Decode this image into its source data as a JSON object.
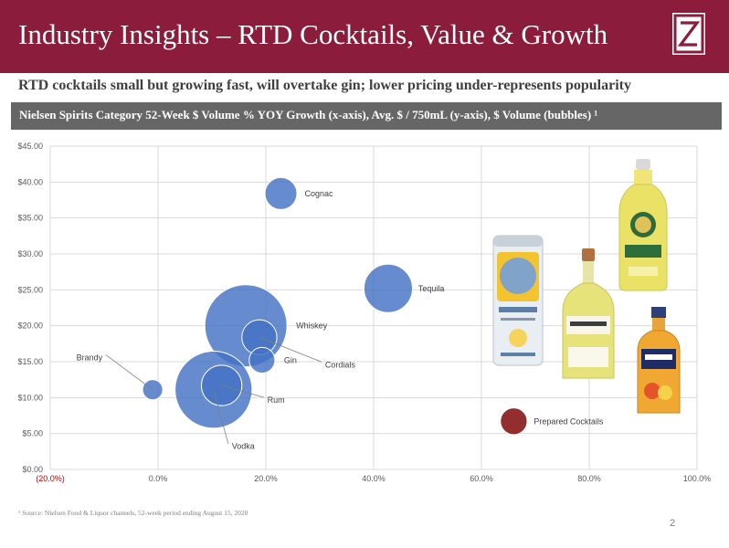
{
  "header": {
    "title": "Industry Insights – RTD Cocktails, Value & Growth",
    "accent_color": "#8c1c3b"
  },
  "subtitle": "RTD cocktails small but growing fast, will overtake gin; lower pricing under-represents popularity",
  "banner": "Nielsen Spirits Category 52-Week $ Volume % YOY Growth (x-axis), Avg. $ / 750mL (y-axis), $ Volume (bubbles) ¹",
  "chart_data": {
    "type": "scatter",
    "title": "",
    "xlabel": "$ Volume % YOY Growth",
    "ylabel": "Avg. $ / 750mL",
    "bubble_size_label": "$ Volume",
    "xlim": [
      -0.2,
      1.0
    ],
    "ylim": [
      0,
      45
    ],
    "x_ticks": [
      "(20.0%)",
      "0.0%",
      "20.0%",
      "40.0%",
      "60.0%",
      "80.0%",
      "100.0%"
    ],
    "y_ticks": [
      "$0.00",
      "$5.00",
      "$10.00",
      "$15.00",
      "$20.00",
      "$25.00",
      "$30.00",
      "$35.00",
      "$40.00",
      "$45.00"
    ],
    "grid": true,
    "series": [
      {
        "name": "Cognac",
        "x": 0.228,
        "y": 38.4,
        "size": 1.0,
        "color": "#4472c4"
      },
      {
        "name": "Tequila",
        "x": 0.427,
        "y": 25.2,
        "size": 2.3,
        "color": "#4472c4"
      },
      {
        "name": "Whiskey",
        "x": 0.163,
        "y": 20.0,
        "size": 6.6,
        "color": "#4472c4"
      },
      {
        "name": "Cordials",
        "x": 0.188,
        "y": 18.4,
        "size": 1.2,
        "color": "#4472c4"
      },
      {
        "name": "Gin",
        "x": 0.193,
        "y": 15.2,
        "size": 0.65,
        "color": "#4472c4"
      },
      {
        "name": "Brandy",
        "x": -0.01,
        "y": 11.1,
        "size": 0.4,
        "color": "#4472c4"
      },
      {
        "name": "Rum",
        "x": 0.118,
        "y": 11.7,
        "size": 1.6,
        "color": "#4472c4"
      },
      {
        "name": "Vodka",
        "x": 0.103,
        "y": 11.1,
        "size": 5.8,
        "color": "#4472c4"
      },
      {
        "name": "Prepared Cocktails",
        "x": 0.66,
        "y": 6.7,
        "size": 0.7,
        "color": "#7b0000"
      }
    ]
  },
  "footnote": "¹ Source: Nielsen Food & Liquor channels, 52-week period ending August 15, 2020",
  "page_number": "2"
}
